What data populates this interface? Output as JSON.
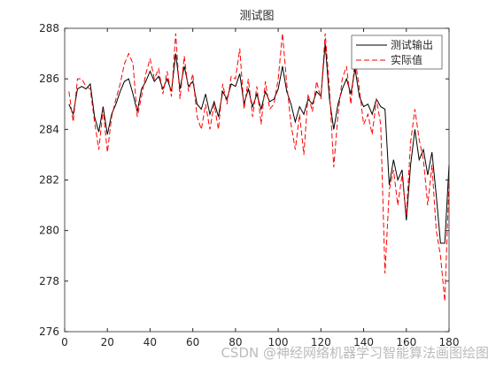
{
  "chart_data": {
    "type": "line",
    "title": "测试图",
    "x": [
      2,
      4,
      6,
      8,
      10,
      12,
      14,
      16,
      18,
      20,
      22,
      24,
      26,
      28,
      30,
      32,
      34,
      36,
      38,
      40,
      42,
      44,
      46,
      48,
      50,
      52,
      54,
      56,
      58,
      60,
      62,
      64,
      66,
      68,
      70,
      72,
      74,
      76,
      78,
      80,
      82,
      84,
      86,
      88,
      90,
      92,
      94,
      96,
      98,
      100,
      102,
      104,
      106,
      108,
      110,
      112,
      114,
      116,
      118,
      120,
      122,
      124,
      126,
      128,
      130,
      132,
      134,
      136,
      138,
      140,
      142,
      144,
      146,
      148,
      150,
      152,
      154,
      156,
      158,
      160,
      162,
      164,
      166,
      168,
      170,
      172,
      174,
      176,
      178,
      180
    ],
    "series": [
      {
        "name": "测试输出",
        "color": "#000000",
        "dash": "solid",
        "values": [
          285.0,
          284.6,
          285.6,
          285.7,
          285.6,
          285.8,
          284.5,
          283.9,
          284.9,
          283.8,
          284.6,
          285.0,
          285.5,
          285.9,
          286.0,
          285.4,
          284.7,
          285.6,
          285.9,
          286.3,
          285.9,
          286.1,
          285.6,
          286.0,
          285.5,
          287.0,
          285.6,
          286.5,
          285.7,
          285.9,
          285.0,
          284.8,
          285.4,
          284.6,
          285.1,
          284.5,
          285.5,
          285.2,
          285.8,
          285.7,
          286.2,
          285.0,
          285.6,
          284.9,
          285.4,
          284.8,
          285.5,
          285.1,
          285.2,
          285.6,
          286.5,
          285.5,
          285.0,
          284.3,
          284.9,
          284.6,
          285.2,
          285.0,
          285.5,
          285.3,
          287.4,
          285.2,
          284.0,
          285.0,
          285.6,
          286.0,
          285.4,
          286.4,
          285.3,
          284.9,
          285.0,
          284.6,
          285.2,
          284.9,
          284.8,
          281.8,
          282.8,
          282.0,
          282.4,
          280.4,
          282.6,
          284.0,
          282.8,
          283.2,
          282.2,
          283.1,
          281.4,
          279.5,
          279.5,
          282.6
        ]
      },
      {
        "name": "实际值",
        "color": "#ff0000",
        "dash": "dashed",
        "values": [
          285.5,
          284.3,
          286.0,
          286.0,
          285.7,
          285.6,
          284.3,
          283.2,
          284.8,
          283.1,
          284.5,
          285.2,
          285.8,
          286.6,
          287.0,
          286.6,
          284.5,
          285.3,
          286.2,
          286.8,
          286.0,
          286.4,
          285.4,
          286.3,
          285.3,
          287.8,
          285.2,
          286.9,
          285.5,
          286.2,
          284.5,
          284.0,
          285.0,
          284.0,
          285.0,
          284.0,
          285.8,
          285.0,
          286.1,
          286.0,
          287.2,
          284.8,
          286.0,
          284.5,
          285.7,
          284.2,
          285.9,
          284.8,
          285.0,
          286.0,
          287.8,
          285.8,
          284.2,
          283.2,
          284.6,
          283.0,
          285.4,
          284.7,
          285.9,
          285.2,
          287.8,
          285.6,
          282.5,
          284.6,
          286.0,
          286.5,
          285.0,
          286.8,
          285.6,
          284.2,
          284.6,
          283.8,
          285.2,
          284.2,
          278.3,
          281.6,
          282.4,
          281.0,
          282.2,
          280.6,
          283.5,
          284.8,
          283.6,
          282.8,
          281.0,
          282.6,
          280.0,
          279.0,
          277.2,
          282.0
        ]
      }
    ],
    "xlim": [
      0,
      180
    ],
    "xticks": [
      0,
      20,
      40,
      60,
      80,
      100,
      120,
      140,
      160,
      180
    ],
    "ylim": [
      276,
      288
    ],
    "yticks": [
      276,
      278,
      280,
      282,
      284,
      286,
      288
    ],
    "legend": "northeast",
    "grid": false,
    "watermark": "CSDN @神经网络机器学习智能算法画图绘图"
  }
}
